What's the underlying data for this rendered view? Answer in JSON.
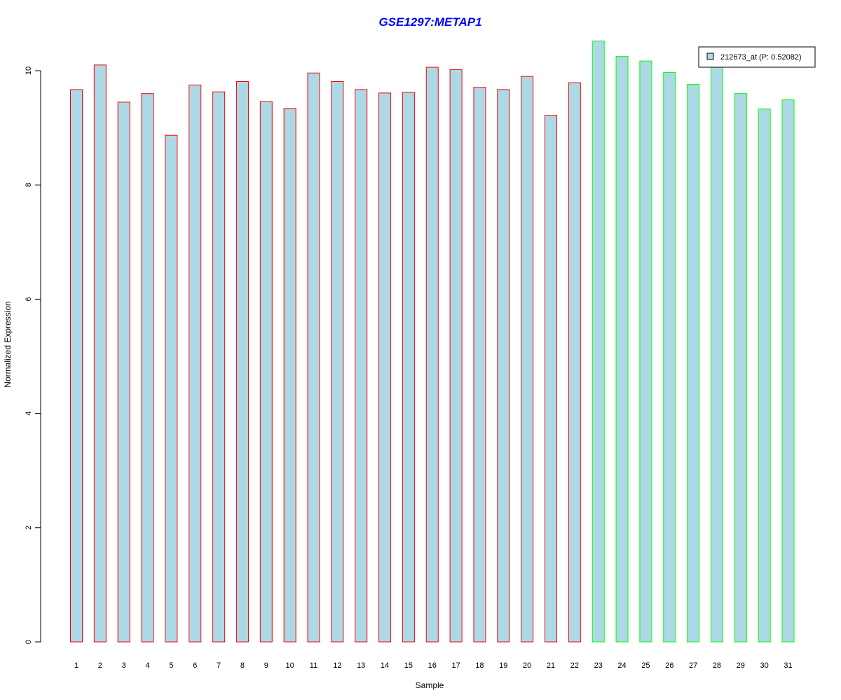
{
  "chart_data": {
    "type": "bar",
    "title": "GSE1297:METAP1",
    "xlabel": "Sample",
    "ylabel": "Normalized Expression",
    "ylim": [
      0,
      10.5
    ],
    "yticks": [
      0,
      2,
      4,
      6,
      8,
      10
    ],
    "categories": [
      "1",
      "2",
      "3",
      "4",
      "5",
      "6",
      "7",
      "8",
      "9",
      "10",
      "11",
      "12",
      "13",
      "14",
      "15",
      "16",
      "17",
      "18",
      "19",
      "20",
      "21",
      "22",
      "23",
      "24",
      "25",
      "26",
      "27",
      "28",
      "29",
      "30",
      "31"
    ],
    "values": [
      9.67,
      10.1,
      9.45,
      9.6,
      8.87,
      9.75,
      9.63,
      9.81,
      9.46,
      9.34,
      9.96,
      9.81,
      9.67,
      9.61,
      9.62,
      10.06,
      10.02,
      9.71,
      9.67,
      9.9,
      9.22,
      9.79,
      10.52,
      10.25,
      10.17,
      9.97,
      9.76,
      10.13,
      9.6,
      9.33,
      9.49
    ],
    "bar_fill": "#add8e6",
    "group_borders": [
      "#ff0000",
      "#ff0000",
      "#ff0000",
      "#ff0000",
      "#ff0000",
      "#ff0000",
      "#ff0000",
      "#ff0000",
      "#ff0000",
      "#ff0000",
      "#ff0000",
      "#ff0000",
      "#ff0000",
      "#ff0000",
      "#ff0000",
      "#ff0000",
      "#ff0000",
      "#ff0000",
      "#ff0000",
      "#ff0000",
      "#ff0000",
      "#ff0000",
      "#00ff00",
      "#00ff00",
      "#00ff00",
      "#00ff00",
      "#00ff00",
      "#00ff00",
      "#00ff00",
      "#00ff00",
      "#00ff00"
    ],
    "title_color": "#0000ff",
    "legend": {
      "label": "212673_at (P: 0.52082)",
      "placement": "top-right",
      "swatch_color": "#add8e6"
    },
    "grid": false
  }
}
